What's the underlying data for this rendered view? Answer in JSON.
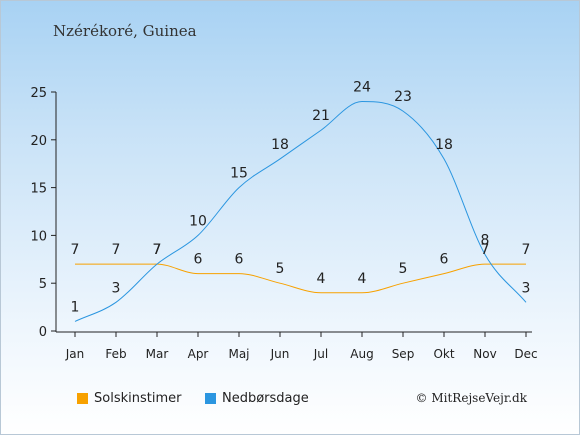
{
  "header": {
    "place": "Nzérékoré, Guinea"
  },
  "footer": {
    "credit": "© MitRejseVejr.dk"
  },
  "colors": {
    "sun": "#f7a100",
    "rain": "#2b96e0"
  },
  "chart_data": {
    "type": "line",
    "categories": [
      "Jan",
      "Feb",
      "Mar",
      "Apr",
      "Maj",
      "Jun",
      "Jul",
      "Aug",
      "Sep",
      "Okt",
      "Nov",
      "Dec"
    ],
    "ylim": [
      0,
      25
    ],
    "yticks": [
      0,
      5,
      10,
      15,
      20,
      25
    ],
    "grid": false,
    "legend": "bottom-left",
    "series": [
      {
        "name": "Solskinstimer",
        "color": "#f7a100",
        "values": [
          7,
          7,
          7,
          6,
          6,
          5,
          4,
          4,
          5,
          6,
          7,
          7
        ]
      },
      {
        "name": "Nedbørsdage",
        "color": "#2b96e0",
        "values": [
          1,
          3,
          7,
          10,
          15,
          18,
          21,
          24,
          23,
          18,
          8,
          3
        ]
      }
    ]
  }
}
